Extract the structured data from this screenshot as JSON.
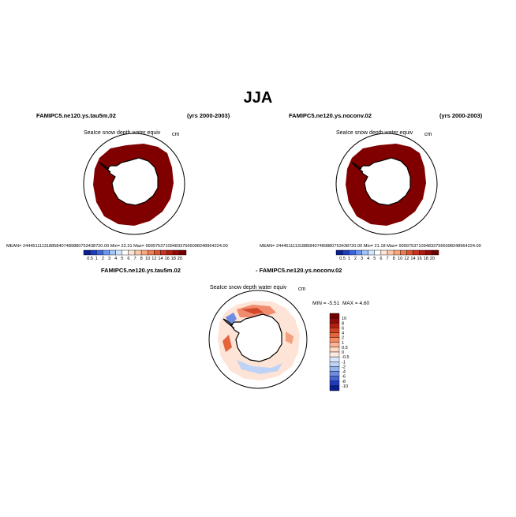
{
  "title": "JJA",
  "panels": [
    {
      "case": "FAMIPC5.ne120.ys.tau5m.02",
      "years": "(yrs 2000-2003)",
      "variable": "SeaIce snow depth water equiv",
      "units": "cm",
      "stats": "MEAN= 244451111318858407489880753438720.00   Min=   22.31   Max= 999975371094833756609824896422​4.00"
    },
    {
      "case": "FAMIPC5.ne120.ys.noconv.02",
      "years": "(yrs 2000-2003)",
      "variable": "SeaIce snow depth water equiv",
      "units": "cm",
      "stats": "MEAN= 244451111318858407489880753438720.00   Min=   21.18   Max= 999975371094833756609824896422​4.00"
    }
  ],
  "diff_panel": {
    "case_a": "FAMIPC5.ne120.ys.tau5m.02",
    "case_b": "- FAMIPC5.ne120.ys.noconv.02",
    "variable": "SeaIce snow depth water equiv",
    "units": "cm",
    "min_label": "MIN = -5.51",
    "max_label": "MAX =   4.60"
  },
  "chart_data": [
    {
      "type": "heatmap",
      "projection": "polar-stereographic-south",
      "colorbar": {
        "orientation": "horizontal",
        "levels": [
          "0.5",
          "1",
          "2",
          "3",
          "4",
          "5",
          "6",
          "7",
          "8",
          "10",
          "12",
          "14",
          "16",
          "18",
          "20"
        ],
        "colors": [
          "#0a1e8c",
          "#1f3cbe",
          "#3c64dc",
          "#6e96f0",
          "#a0c3fa",
          "#d2e6ff",
          "#ffffff",
          "#ffe6d2",
          "#fcc8aa",
          "#f7a57d",
          "#eb7d55",
          "#dc5532",
          "#c8321e",
          "#aa1e12",
          "#8c0c0a",
          "#700000"
        ]
      },
      "field_color": "#800000"
    },
    {
      "type": "heatmap",
      "projection": "polar-stereographic-south",
      "colorbar": {
        "orientation": "vertical",
        "levels": [
          "10",
          "8",
          "6",
          "4",
          "2",
          "1",
          "0.5",
          "0",
          "-0.5",
          "-1",
          "-2",
          "-4",
          "-6",
          "-8",
          "-10"
        ],
        "colors": [
          "#700000",
          "#8c0c0a",
          "#b4200f",
          "#d24123",
          "#e6643c",
          "#f58c64",
          "#fab496",
          "#fdd8c4",
          "#fdeade",
          "#dce8fa",
          "#bed3f5",
          "#96b4eb",
          "#6e8ce1",
          "#4664d2",
          "#1e3cb9",
          "#0a1e8c"
        ]
      }
    }
  ]
}
